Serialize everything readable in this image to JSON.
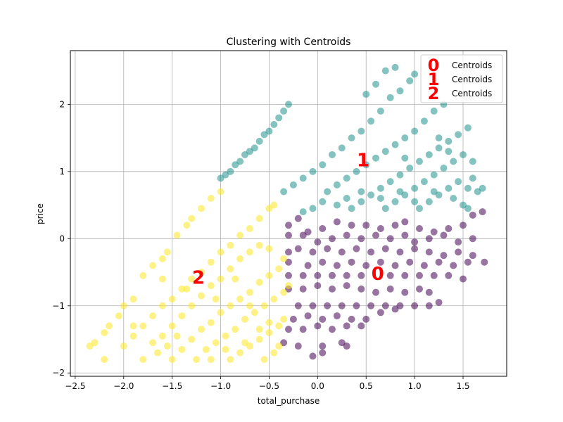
{
  "chart_data": {
    "type": "scatter",
    "title": "Clustering with Centroids",
    "xlabel": "total_purchase",
    "ylabel": "price",
    "xlim": [
      -2.55,
      1.95
    ],
    "ylim": [
      -2.05,
      2.8
    ],
    "xticks": [
      -2.5,
      -2.0,
      -1.5,
      -1.0,
      -0.5,
      0.0,
      0.5,
      1.0,
      1.5
    ],
    "xtick_labels": [
      "−2.5",
      "−2.0",
      "−1.5",
      "−1.0",
      "−0.5",
      "0.0",
      "0.5",
      "1.0",
      "1.5"
    ],
    "yticks": [
      -2,
      -1,
      0,
      1,
      2
    ],
    "ytick_labels": [
      "−2",
      "−1",
      "0",
      "1",
      "2"
    ],
    "grid": true,
    "legend_position": "top-right",
    "legend": [
      {
        "marker": "0",
        "label": "Centroids"
      },
      {
        "marker": "1",
        "label": "Centroids"
      },
      {
        "marker": "2",
        "label": "Centroids"
      }
    ],
    "centroids": [
      {
        "label": "0",
        "x": 0.62,
        "y": -0.52,
        "color": "#ff0000"
      },
      {
        "label": "1",
        "x": 0.47,
        "y": 1.17,
        "color": "#ff0000"
      },
      {
        "label": "2",
        "x": -1.23,
        "y": -0.58,
        "color": "#ff0000"
      }
    ],
    "series": [
      {
        "cluster": 0,
        "color": "#440154",
        "points": [
          [
            -0.3,
            0.2
          ],
          [
            -0.2,
            0.3
          ],
          [
            -0.1,
            0.1
          ],
          [
            0.05,
            0.15
          ],
          [
            0.2,
            0.25
          ],
          [
            0.35,
            0.2
          ],
          [
            0.5,
            0.2
          ],
          [
            0.65,
            0.15
          ],
          [
            0.8,
            0.2
          ],
          [
            0.9,
            0.25
          ],
          [
            1.05,
            0.15
          ],
          [
            1.2,
            0.1
          ],
          [
            1.35,
            0.15
          ],
          [
            1.5,
            0.2
          ],
          [
            1.6,
            0.35
          ],
          [
            1.7,
            0.4
          ],
          [
            -0.3,
            0.05
          ],
          [
            -0.15,
            0.05
          ],
          [
            0.0,
            -0.05
          ],
          [
            0.15,
            0.0
          ],
          [
            0.3,
            0.05
          ],
          [
            0.45,
            0.0
          ],
          [
            0.6,
            0.05
          ],
          [
            0.75,
            0.0
          ],
          [
            0.9,
            0.05
          ],
          [
            1.0,
            -0.05
          ],
          [
            1.15,
            0.0
          ],
          [
            1.3,
            0.05
          ],
          [
            1.45,
            -0.05
          ],
          [
            1.6,
            0.0
          ],
          [
            -0.3,
            -0.2
          ],
          [
            -0.2,
            -0.15
          ],
          [
            -0.05,
            -0.2
          ],
          [
            0.1,
            -0.15
          ],
          [
            0.25,
            -0.2
          ],
          [
            0.4,
            -0.15
          ],
          [
            0.55,
            -0.2
          ],
          [
            0.7,
            -0.15
          ],
          [
            0.85,
            -0.2
          ],
          [
            1.0,
            -0.15
          ],
          [
            1.15,
            -0.2
          ],
          [
            1.3,
            -0.25
          ],
          [
            1.45,
            -0.2
          ],
          [
            1.6,
            -0.25
          ],
          [
            1.72,
            -0.35
          ],
          [
            -0.3,
            -0.35
          ],
          [
            -0.1,
            -0.4
          ],
          [
            0.05,
            -0.35
          ],
          [
            0.2,
            -0.4
          ],
          [
            0.35,
            -0.35
          ],
          [
            0.5,
            -0.4
          ],
          [
            0.65,
            -0.35
          ],
          [
            0.8,
            -0.4
          ],
          [
            0.95,
            -0.35
          ],
          [
            1.1,
            -0.4
          ],
          [
            1.25,
            -0.35
          ],
          [
            1.4,
            -0.4
          ],
          [
            1.55,
            -0.35
          ],
          [
            -0.3,
            -0.55
          ],
          [
            -0.15,
            -0.55
          ],
          [
            0.0,
            -0.55
          ],
          [
            0.15,
            -0.55
          ],
          [
            0.3,
            -0.55
          ],
          [
            0.45,
            -0.55
          ],
          [
            0.75,
            -0.55
          ],
          [
            0.9,
            -0.55
          ],
          [
            1.05,
            -0.55
          ],
          [
            1.2,
            -0.55
          ],
          [
            1.35,
            -0.55
          ],
          [
            1.5,
            -0.6
          ],
          [
            -0.3,
            -0.75
          ],
          [
            -0.15,
            -0.75
          ],
          [
            0.0,
            -0.7
          ],
          [
            0.15,
            -0.75
          ],
          [
            0.3,
            -0.7
          ],
          [
            0.45,
            -0.75
          ],
          [
            0.6,
            -0.8
          ],
          [
            0.75,
            -0.75
          ],
          [
            0.9,
            -0.8
          ],
          [
            1.05,
            -0.75
          ],
          [
            1.15,
            -0.8
          ],
          [
            -0.2,
            -1.0
          ],
          [
            -0.05,
            -1.0
          ],
          [
            0.1,
            -1.0
          ],
          [
            0.25,
            -1.0
          ],
          [
            0.4,
            -1.0
          ],
          [
            0.55,
            -1.0
          ],
          [
            0.7,
            -1.0
          ],
          [
            0.85,
            -1.0
          ],
          [
            1.0,
            -1.0
          ],
          [
            1.15,
            -1.0
          ],
          [
            1.25,
            -0.95
          ],
          [
            -0.25,
            -1.2
          ],
          [
            -0.1,
            -1.15
          ],
          [
            0.05,
            -1.2
          ],
          [
            0.2,
            -1.15
          ],
          [
            0.35,
            -1.2
          ],
          [
            0.5,
            -1.2
          ],
          [
            0.65,
            -1.1
          ],
          [
            0.8,
            -1.05
          ],
          [
            -0.3,
            -1.35
          ],
          [
            -0.15,
            -1.35
          ],
          [
            0.0,
            -1.3
          ],
          [
            0.15,
            -1.35
          ],
          [
            0.3,
            -1.3
          ],
          [
            0.45,
            -1.3
          ],
          [
            -0.35,
            -1.55
          ],
          [
            -0.2,
            -1.6
          ],
          [
            0.05,
            -1.6
          ],
          [
            0.25,
            -1.55
          ],
          [
            0.3,
            -1.6
          ],
          [
            -0.05,
            -1.75
          ],
          [
            0.05,
            -1.7
          ]
        ]
      },
      {
        "cluster": 1,
        "color": "#21918c",
        "points": [
          [
            -1.0,
            0.9
          ],
          [
            -0.95,
            0.95
          ],
          [
            -0.9,
            1.0
          ],
          [
            -0.85,
            1.1
          ],
          [
            -0.8,
            1.15
          ],
          [
            -0.75,
            1.25
          ],
          [
            -0.7,
            1.3
          ],
          [
            -0.65,
            1.35
          ],
          [
            -0.6,
            1.45
          ],
          [
            -0.55,
            1.55
          ],
          [
            -0.5,
            1.6
          ],
          [
            -0.45,
            1.7
          ],
          [
            -0.4,
            1.8
          ],
          [
            -0.35,
            1.9
          ],
          [
            -0.3,
            2.0
          ],
          [
            -0.35,
            0.7
          ],
          [
            -0.25,
            0.8
          ],
          [
            -0.15,
            0.9
          ],
          [
            -0.05,
            1.0
          ],
          [
            0.05,
            1.1
          ],
          [
            0.15,
            1.25
          ],
          [
            0.25,
            1.35
          ],
          [
            0.35,
            1.5
          ],
          [
            0.45,
            1.6
          ],
          [
            0.55,
            1.75
          ],
          [
            0.65,
            1.9
          ],
          [
            0.75,
            2.1
          ],
          [
            0.85,
            2.2
          ],
          [
            0.95,
            2.35
          ],
          [
            1.0,
            2.45
          ],
          [
            0.8,
            2.55
          ],
          [
            0.7,
            2.5
          ],
          [
            0.6,
            2.3
          ],
          [
            0.5,
            2.15
          ],
          [
            0.1,
            0.7
          ],
          [
            0.2,
            0.8
          ],
          [
            0.3,
            0.9
          ],
          [
            0.4,
            1.0
          ],
          [
            0.5,
            1.1
          ],
          [
            0.6,
            1.2
          ],
          [
            0.7,
            1.3
          ],
          [
            0.8,
            1.4
          ],
          [
            0.9,
            1.5
          ],
          [
            1.0,
            1.6
          ],
          [
            1.1,
            1.75
          ],
          [
            1.2,
            1.9
          ],
          [
            1.3,
            2.0
          ],
          [
            0.35,
            0.45
          ],
          [
            0.45,
            0.55
          ],
          [
            0.55,
            0.65
          ],
          [
            0.65,
            0.75
          ],
          [
            0.75,
            0.85
          ],
          [
            0.85,
            0.95
          ],
          [
            0.95,
            1.05
          ],
          [
            1.05,
            1.15
          ],
          [
            1.15,
            1.25
          ],
          [
            1.25,
            1.35
          ],
          [
            1.35,
            1.45
          ],
          [
            1.45,
            1.55
          ],
          [
            1.55,
            1.65
          ],
          [
            0.7,
            0.45
          ],
          [
            0.8,
            0.55
          ],
          [
            0.9,
            0.65
          ],
          [
            1.0,
            0.75
          ],
          [
            1.1,
            0.85
          ],
          [
            1.2,
            0.95
          ],
          [
            1.3,
            1.05
          ],
          [
            1.4,
            1.15
          ],
          [
            1.5,
            1.25
          ],
          [
            1.6,
            1.15
          ],
          [
            1.05,
            0.45
          ],
          [
            1.15,
            0.55
          ],
          [
            1.25,
            0.65
          ],
          [
            1.35,
            0.75
          ],
          [
            1.45,
            0.85
          ],
          [
            1.55,
            0.75
          ],
          [
            1.65,
            0.7
          ],
          [
            1.7,
            0.75
          ],
          [
            1.5,
            0.5
          ],
          [
            -0.15,
            0.4
          ],
          [
            -0.05,
            0.45
          ],
          [
            0.05,
            0.55
          ],
          [
            0.2,
            0.5
          ],
          [
            0.3,
            0.6
          ],
          [
            0.45,
            0.7
          ],
          [
            0.65,
            0.6
          ],
          [
            0.85,
            0.7
          ],
          [
            1.0,
            0.55
          ],
          [
            1.2,
            0.7
          ],
          [
            1.4,
            0.6
          ],
          [
            1.55,
            0.45
          ],
          [
            1.6,
            0.9
          ],
          [
            1.35,
            1.3
          ],
          [
            1.25,
            1.5
          ],
          [
            0.9,
            1.2
          ]
        ]
      },
      {
        "cluster": 2,
        "color": "#fde725",
        "points": [
          [
            -2.35,
            -1.6
          ],
          [
            -2.3,
            -1.55
          ],
          [
            -2.2,
            -1.4
          ],
          [
            -2.15,
            -1.3
          ],
          [
            -2.05,
            -1.15
          ],
          [
            -2.0,
            -1.0
          ],
          [
            -1.9,
            -0.9
          ],
          [
            -1.8,
            -0.55
          ],
          [
            -1.7,
            -0.4
          ],
          [
            -1.6,
            -0.3
          ],
          [
            -1.55,
            -0.2
          ],
          [
            -1.45,
            0.05
          ],
          [
            -1.35,
            0.2
          ],
          [
            -1.3,
            0.3
          ],
          [
            -1.2,
            0.45
          ],
          [
            -1.1,
            0.6
          ],
          [
            -1.0,
            0.7
          ],
          [
            -2.0,
            -1.6
          ],
          [
            -1.9,
            -1.45
          ],
          [
            -1.8,
            -1.3
          ],
          [
            -1.7,
            -1.15
          ],
          [
            -1.6,
            -1.0
          ],
          [
            -1.5,
            -0.9
          ],
          [
            -1.4,
            -0.75
          ],
          [
            -1.3,
            -0.6
          ],
          [
            -1.2,
            -0.5
          ],
          [
            -1.1,
            -0.35
          ],
          [
            -1.0,
            -0.2
          ],
          [
            -0.9,
            -0.1
          ],
          [
            -0.8,
            0.05
          ],
          [
            -0.7,
            0.15
          ],
          [
            -0.6,
            0.3
          ],
          [
            -0.5,
            0.45
          ],
          [
            -0.45,
            0.5
          ],
          [
            -1.7,
            -1.55
          ],
          [
            -1.6,
            -1.45
          ],
          [
            -1.5,
            -1.3
          ],
          [
            -1.4,
            -1.15
          ],
          [
            -1.3,
            -1.0
          ],
          [
            -1.2,
            -0.85
          ],
          [
            -1.1,
            -0.7
          ],
          [
            -1.0,
            -0.6
          ],
          [
            -0.9,
            -0.45
          ],
          [
            -0.8,
            -0.3
          ],
          [
            -0.7,
            -0.2
          ],
          [
            -0.6,
            -0.1
          ],
          [
            -0.5,
            -0.15
          ],
          [
            -1.5,
            -1.8
          ],
          [
            -1.4,
            -1.65
          ],
          [
            -1.3,
            -1.5
          ],
          [
            -1.2,
            -1.35
          ],
          [
            -1.1,
            -1.25
          ],
          [
            -1.0,
            -1.1
          ],
          [
            -0.9,
            -1.0
          ],
          [
            -0.8,
            -0.9
          ],
          [
            -0.7,
            -0.8
          ],
          [
            -0.6,
            -0.65
          ],
          [
            -0.5,
            -0.55
          ],
          [
            -0.4,
            -0.45
          ],
          [
            -0.35,
            -0.3
          ],
          [
            -1.25,
            -1.8
          ],
          [
            -1.15,
            -1.65
          ],
          [
            -1.05,
            -1.55
          ],
          [
            -0.95,
            -1.45
          ],
          [
            -0.85,
            -1.35
          ],
          [
            -0.75,
            -1.2
          ],
          [
            -0.65,
            -1.1
          ],
          [
            -0.55,
            -1.0
          ],
          [
            -0.45,
            -0.9
          ],
          [
            -0.35,
            -0.8
          ],
          [
            -0.3,
            -0.7
          ],
          [
            -0.9,
            -1.8
          ],
          [
            -0.8,
            -1.7
          ],
          [
            -0.7,
            -1.6
          ],
          [
            -0.6,
            -1.5
          ],
          [
            -0.5,
            -1.4
          ],
          [
            -0.4,
            -1.3
          ],
          [
            -0.35,
            -1.2
          ],
          [
            -0.55,
            -1.8
          ],
          [
            -0.45,
            -1.7
          ],
          [
            -0.4,
            -1.6
          ],
          [
            -2.2,
            -1.8
          ],
          [
            -1.8,
            -1.8
          ],
          [
            -1.55,
            -1.6
          ],
          [
            -1.45,
            -1.45
          ],
          [
            -1.65,
            -1.7
          ],
          [
            -1.1,
            -1.8
          ],
          [
            -0.95,
            -1.65
          ],
          [
            -0.75,
            -1.55
          ],
          [
            -0.6,
            -1.35
          ],
          [
            -0.5,
            -1.25
          ],
          [
            -0.7,
            -1.0
          ],
          [
            -0.85,
            -0.6
          ],
          [
            -1.05,
            -0.9
          ],
          [
            -1.35,
            -0.75
          ],
          [
            -1.6,
            -0.6
          ],
          [
            -1.9,
            -1.3
          ]
        ]
      }
    ]
  }
}
